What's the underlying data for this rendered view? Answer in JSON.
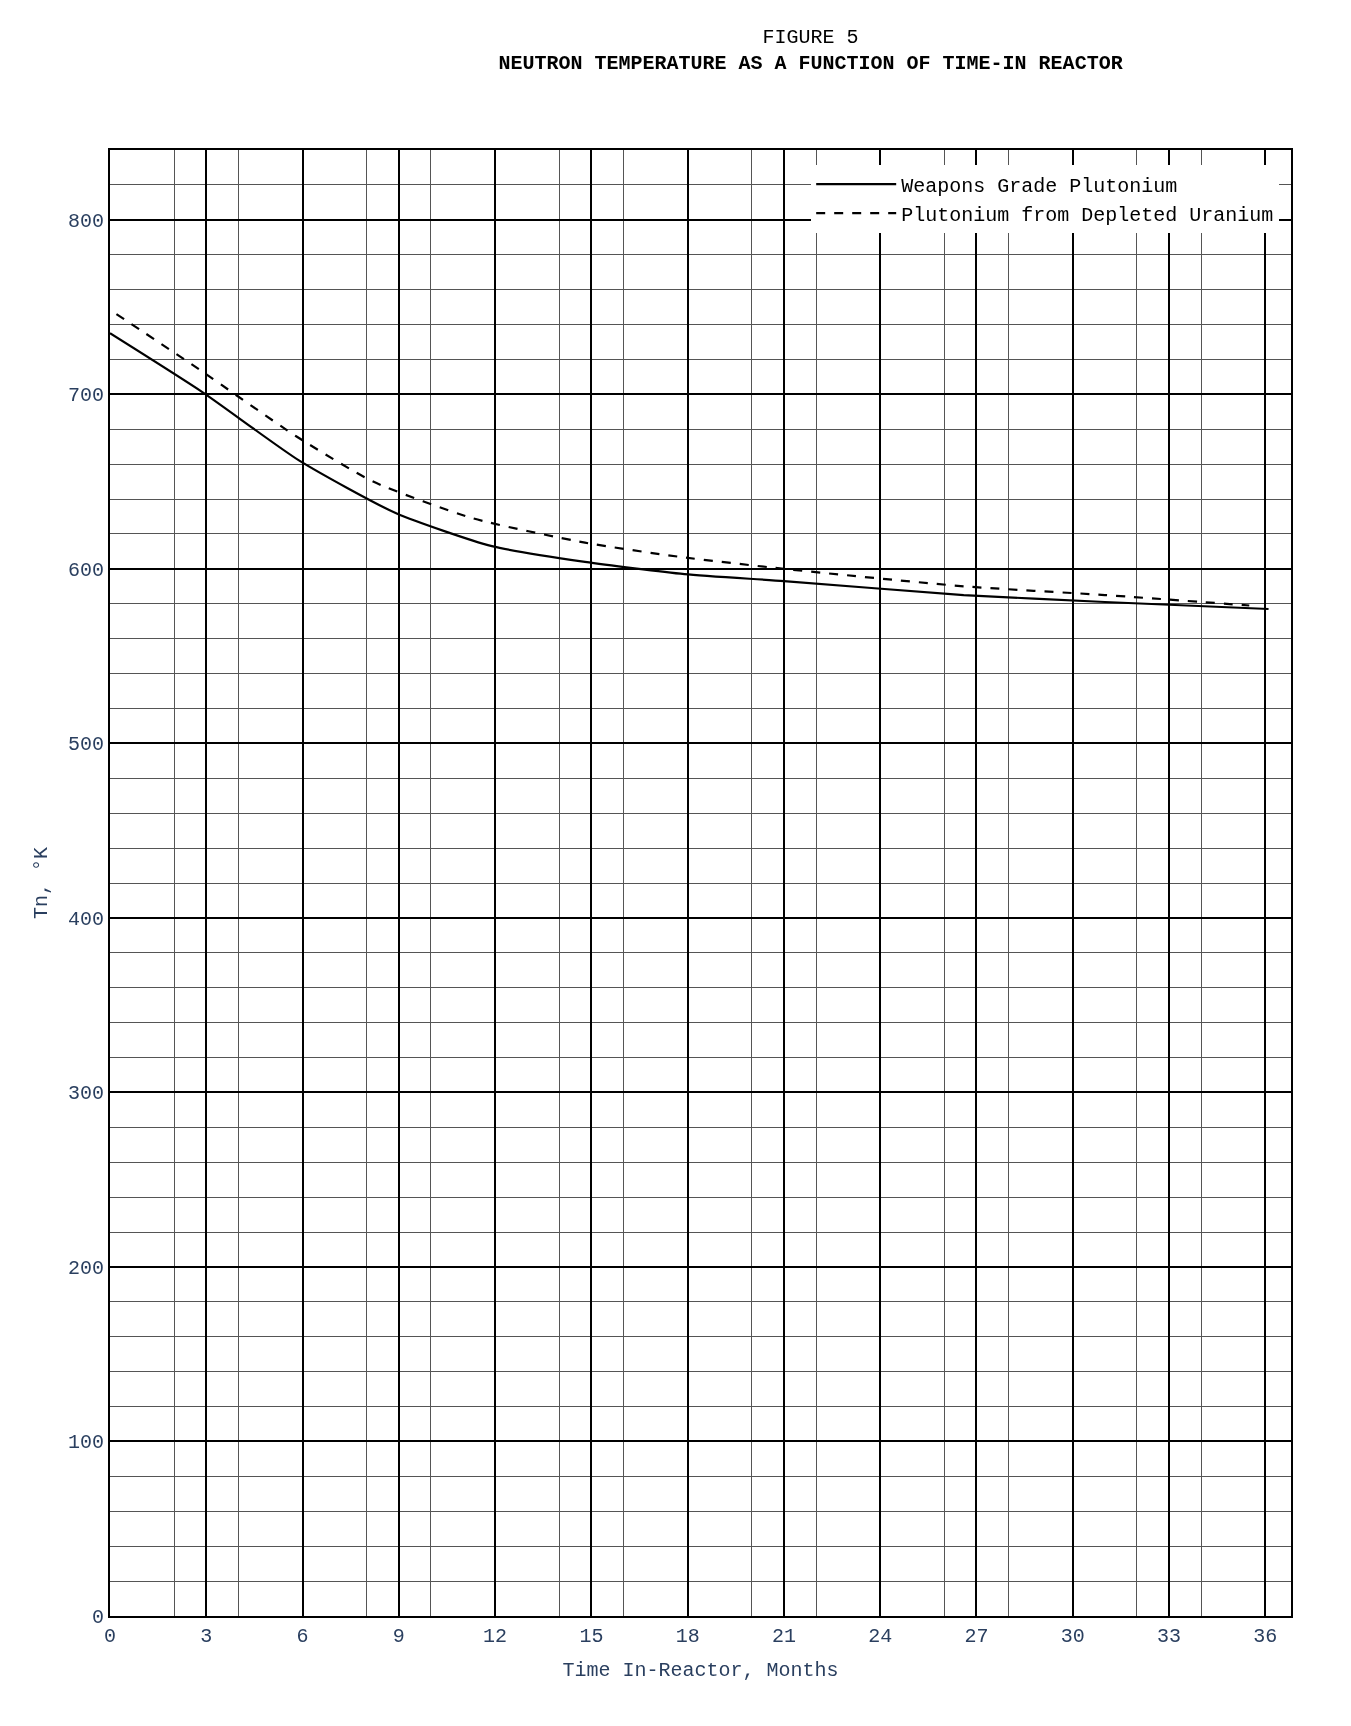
{
  "chart_data": {
    "type": "line",
    "title": "FIGURE 5",
    "subtitle": "NEUTRON TEMPERATURE AS A FUNCTION OF TIME-IN REACTOR",
    "xlabel": "Time In-Reactor, Months",
    "ylabel": "Tn, °K",
    "xlim": [
      0,
      36.8
    ],
    "xticks": [
      0,
      3,
      6,
      9,
      12,
      15,
      18,
      21,
      24,
      27,
      30,
      33,
      36
    ],
    "ylim": [
      0,
      840
    ],
    "yticks": [
      0,
      100,
      200,
      300,
      400,
      500,
      600,
      700,
      800
    ],
    "grid": true,
    "legend": "top right",
    "marker": "none",
    "series": [
      {
        "name": "Weapons Grade Plutonium",
        "color": "#000000",
        "line_style": "solid",
        "x": [
          0,
          2.9,
          5.9,
          8.9,
          11.9,
          14.8,
          17.9,
          21,
          26.6,
          31,
          36.1
        ],
        "values": [
          735,
          701,
          662,
          632,
          613,
          604,
          597,
          593,
          585,
          581,
          577
        ]
      },
      {
        "name": "Plutonium from Depleted Uranium",
        "color": "#000000",
        "line_style": "dashed",
        "x": [
          0.2,
          2.8,
          5.8,
          8.2,
          11.3,
          14.8,
          17.7,
          21,
          26.6,
          31,
          35.5
        ],
        "values": [
          746,
          714,
          676,
          650,
          629,
          615,
          607,
          600,
          590,
          585,
          579
        ]
      }
    ]
  }
}
